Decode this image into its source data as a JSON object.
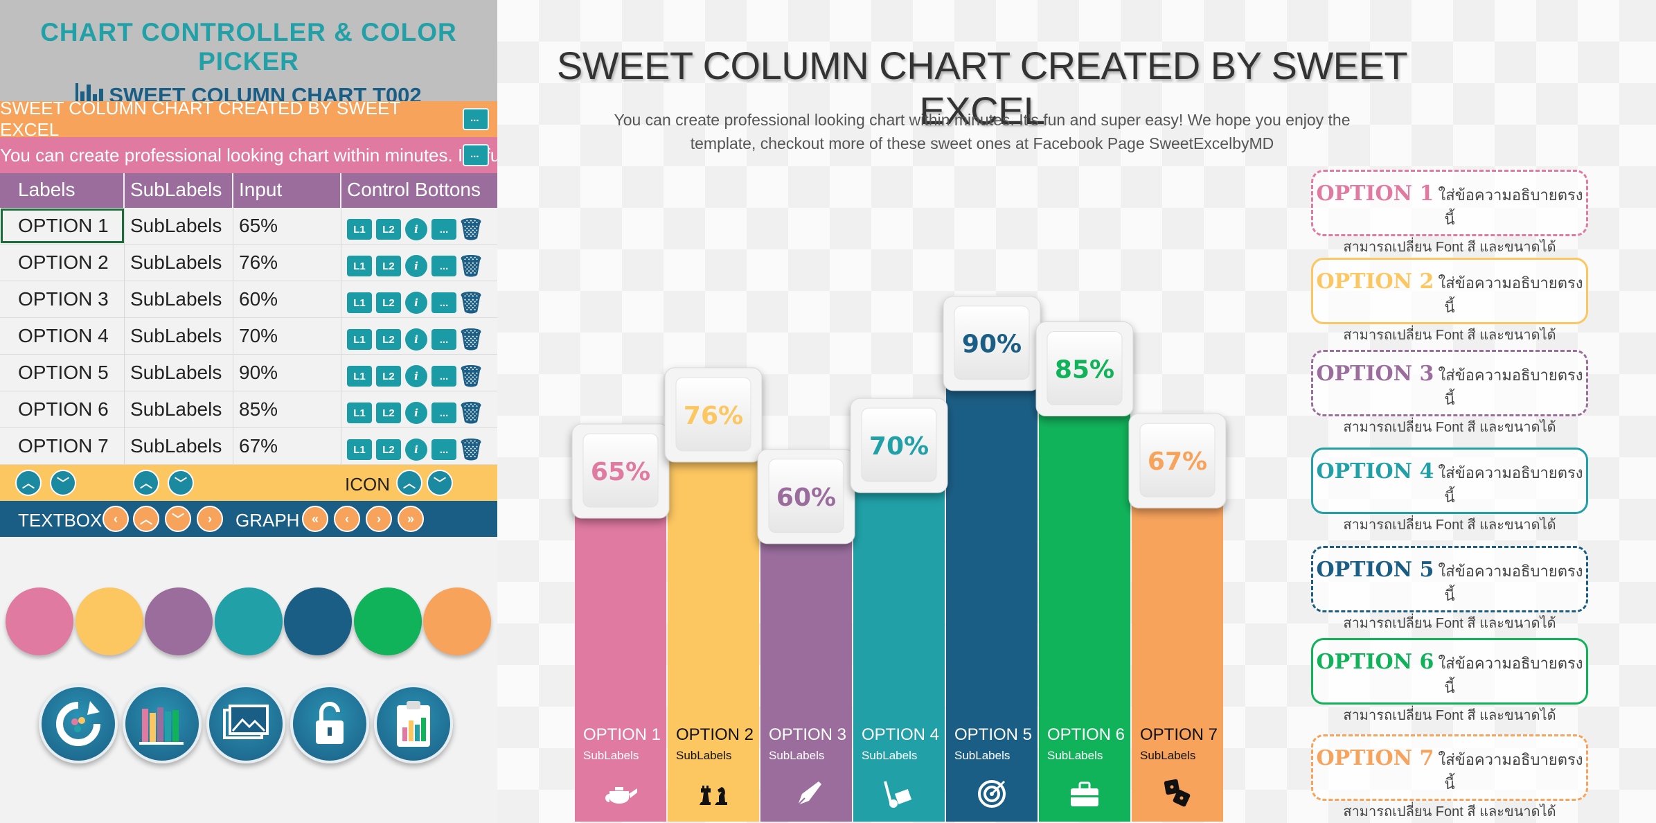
{
  "panel": {
    "title": "CHART CONTROLLER & COLOR PICKER",
    "subtitle": "SWEET COLUMN CHART T002",
    "title_row_text": "SWEET COLUMN CHART CREATED BY SWEET EXCEL",
    "desc_row_text": "You can create professional looking chart within minutes. It's fun and super easy! We hope",
    "headers": [
      "Labels",
      "SubLabels",
      "Input",
      "Control Bottons"
    ],
    "rows": [
      {
        "label": "OPTION 1",
        "sub": "SubLabels",
        "input": "65%"
      },
      {
        "label": "OPTION 2",
        "sub": "SubLabels",
        "input": "76%"
      },
      {
        "label": "OPTION 3",
        "sub": "SubLabels",
        "input": "60%"
      },
      {
        "label": "OPTION 4",
        "sub": "SubLabels",
        "input": "70%"
      },
      {
        "label": "OPTION 5",
        "sub": "SubLabels",
        "input": "90%"
      },
      {
        "label": "OPTION 6",
        "sub": "SubLabels",
        "input": "85%"
      },
      {
        "label": "OPTION 7",
        "sub": "SubLabels",
        "input": "67%"
      }
    ],
    "row_icons": [
      "L1",
      "L2",
      "i",
      "...",
      "🗑"
    ],
    "icon_label": "ICON",
    "textbox_label": "TEXTBOX",
    "graph_label": "GRAPH",
    "swatch_colors": [
      "#e07aa0",
      "#fcc661",
      "#9a6d9d",
      "#21a0a8",
      "#1b5e85",
      "#11b35a",
      "#f7a35c"
    ],
    "tool_icons": [
      "refresh-palette-icon",
      "books-chart-icon",
      "picture-icon",
      "unlock-icon",
      "clipboard-chart-icon"
    ]
  },
  "chart": {
    "title": "SWEET COLUMN CHART CREATED BY SWEET EXCEL",
    "description": "You can create professional looking chart within minutes. It's fun and super easy! We hope you enjoy the template, checkout more of these sweet ones at Facebook Page SweetExcelbyMD"
  },
  "callouts": [
    {
      "title": "OPTION 1",
      "line1": "ใส่ข้อความอธิบายตรงนี้",
      "line2": "สามารถเปลี่ยน Font สี และขนาดได้",
      "color": "#e07aa0",
      "style": "dashed"
    },
    {
      "title": "OPTION 2",
      "line1": "ใส่ข้อความอธิบายตรงนี้",
      "line2": "สามารถเปลี่ยน Font สี และขนาดได้",
      "color": "#fcc661",
      "style": "solid"
    },
    {
      "title": "OPTION 3",
      "line1": "ใส่ข้อความอธิบายตรงนี้",
      "line2": "สามารถเปลี่ยน Font สี และขนาดได้",
      "color": "#9a6d9d",
      "style": "dashed"
    },
    {
      "title": "OPTION 4",
      "line1": "ใส่ข้อความอธิบายตรงนี้",
      "line2": "สามารถเปลี่ยน Font สี และขนาดได้",
      "color": "#21a0a8",
      "style": "solid"
    },
    {
      "title": "OPTION 5",
      "line1": "ใส่ข้อความอธิบายตรงนี้",
      "line2": "สามารถเปลี่ยน Font สี และขนาดได้",
      "color": "#1b5e85",
      "style": "dashed"
    },
    {
      "title": "OPTION 6",
      "line1": "ใส่ข้อความอธิบายตรงนี้",
      "line2": "สามารถเปลี่ยน Font สี และขนาดได้",
      "color": "#11b35a",
      "style": "solid"
    },
    {
      "title": "OPTION 7",
      "line1": "ใส่ข้อความอธิบายตรงนี้",
      "line2": "สามารถเปลี่ยน Font สี และขนาดได้",
      "color": "#f7a35c",
      "style": "dashed"
    }
  ],
  "chart_data": {
    "type": "bar",
    "title": "SWEET COLUMN CHART CREATED BY SWEET EXCEL",
    "categories": [
      "OPTION 1",
      "OPTION 2",
      "OPTION 3",
      "OPTION 4",
      "OPTION 5",
      "OPTION 6",
      "OPTION 7"
    ],
    "sublabels": [
      "SubLabels",
      "SubLabels",
      "SubLabels",
      "SubLabels",
      "SubLabels",
      "SubLabels",
      "SubLabels"
    ],
    "values": [
      65,
      76,
      60,
      70,
      90,
      85,
      67
    ],
    "value_labels": [
      "65%",
      "76%",
      "60%",
      "70%",
      "90%",
      "85%",
      "67%"
    ],
    "colors": [
      "#e07aa0",
      "#fcc661",
      "#9a6d9d",
      "#21a0a8",
      "#1b5e85",
      "#11b35a",
      "#f7a35c"
    ],
    "label_colors": [
      "#ffffff",
      "#111111",
      "#ffffff",
      "#ffffff",
      "#ffffff",
      "#ffffff",
      "#111111"
    ],
    "icons": [
      "teapot-icon",
      "chess-icon",
      "pen-nib-icon",
      "hand-truck-icon",
      "target-icon",
      "briefcase-icon",
      "dice-icon"
    ],
    "ylim": [
      0,
      100
    ],
    "xlabel": "",
    "ylabel": "",
    "grid": false,
    "legend": "none"
  }
}
